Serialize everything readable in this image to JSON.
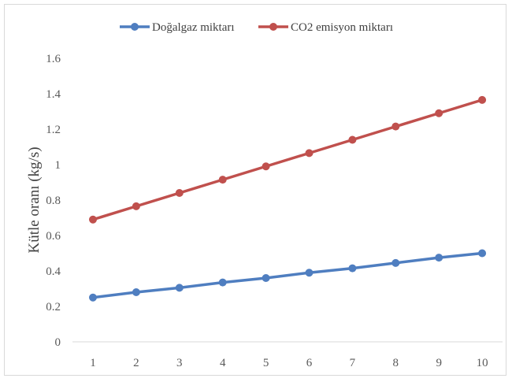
{
  "chart_data": {
    "type": "line",
    "title": "",
    "xlabel": "",
    "ylabel": "Kütle oranı (kg/s)",
    "x": [
      1,
      2,
      3,
      4,
      5,
      6,
      7,
      8,
      9,
      10
    ],
    "ylim": [
      0,
      1.6
    ],
    "yticks": [
      0,
      0.2,
      0.4,
      0.6,
      0.8,
      1,
      1.2,
      1.4,
      1.6
    ],
    "ytick_labels": [
      "0",
      "0.2",
      "0.4",
      "0.6",
      "0.8",
      "1",
      "1.2",
      "1.4",
      "1.6"
    ],
    "grid": false,
    "legend_position": "top",
    "series": [
      {
        "name": "Doğalgaz miktarı",
        "color": "#4f7ec0",
        "values": [
          0.25,
          0.28,
          0.305,
          0.335,
          0.36,
          0.39,
          0.415,
          0.445,
          0.475,
          0.5
        ]
      },
      {
        "name": "CO2 emisyon miktarı",
        "color": "#c0504d",
        "values": [
          0.69,
          0.765,
          0.84,
          0.915,
          0.99,
          1.065,
          1.14,
          1.215,
          1.29,
          1.365
        ]
      }
    ]
  }
}
